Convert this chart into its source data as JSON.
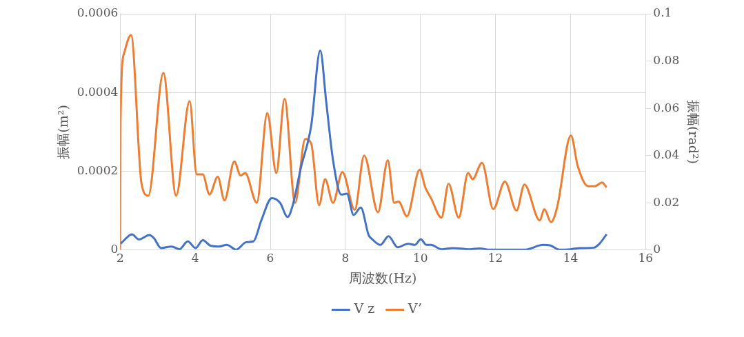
{
  "chart_data": {
    "type": "line",
    "xlabel": "周波数(Hz)",
    "ylabel": "振幅(m²)",
    "y2label": "振幅(rad²)",
    "xlim": [
      2,
      16
    ],
    "xticks": [
      2,
      4,
      6,
      8,
      10,
      12,
      14,
      16
    ],
    "ylim": [
      0,
      0.0006
    ],
    "yticks": [
      0,
      0.0002,
      0.0004,
      0.0006
    ],
    "y2lim": [
      0,
      0.1
    ],
    "y2ticks": [
      0,
      0.02,
      0.04,
      0.06,
      0.08,
      0.1
    ],
    "grid": true,
    "legend": "bottom",
    "marker": "none",
    "line_style": "solid",
    "series": [
      {
        "name": "V z",
        "color": "#4472c4",
        "x": [
          2.01,
          2.26,
          2.31,
          2.5,
          2.78,
          2.9,
          3.09,
          3.37,
          3.58,
          3.8,
          4.01,
          4.2,
          4.41,
          4.63,
          4.84,
          5.09,
          5.36,
          5.55,
          5.76,
          6.04,
          6.26,
          6.46,
          6.59,
          6.81,
          7.09,
          7.33,
          7.49,
          7.67,
          7.89,
          8.04,
          8.22,
          8.41,
          8.62,
          8.72,
          8.93,
          9.15,
          9.39,
          9.67,
          9.85,
          10.01,
          10.16,
          10.28,
          10.56,
          10.87,
          11.3,
          11.58,
          11.85,
          12.53,
          12.78,
          13.27,
          13.45,
          13.7,
          14.0,
          14.25,
          14.62,
          14.77,
          14.96
        ],
        "values": [
          1.6e-05,
          3.8e-05,
          4e-05,
          2.7e-05,
          3.8e-05,
          3e-05,
          5e-06,
          9e-06,
          2e-06,
          2.2e-05,
          5e-06,
          2.5e-05,
          1.1e-05,
          9e-06,
          1.3e-05,
          1e-06,
          2e-05,
          2.2e-05,
          7.5e-05,
          0.000132,
          0.00012,
          8.4e-05,
          0.000111,
          0.000207,
          0.000316,
          0.000507,
          0.000376,
          0.000229,
          0.000141,
          0.000143,
          8.9e-05,
          0.000108,
          3.8e-05,
          2.7e-05,
          1.3e-05,
          3.5e-05,
          7e-06,
          1.6e-05,
          1.3e-05,
          2.7e-05,
          1.3e-05,
          1.3e-05,
          2e-06,
          5e-06,
          2e-06,
          4e-06,
          1e-06,
          1e-06,
          1e-06,
          1.3e-05,
          1.2e-05,
          1e-06,
          2e-06,
          5e-06,
          6e-06,
          1.6e-05,
          4e-05
        ]
      },
      {
        "name": "V’",
        "color": "#ed7d31",
        "axis": "y2",
        "x": [
          2.0,
          2.01,
          2.1,
          2.29,
          2.57,
          2.75,
          3.15,
          3.49,
          3.85,
          4.04,
          4.2,
          4.38,
          4.6,
          4.78,
          5.04,
          5.21,
          5.33,
          5.64,
          5.92,
          6.16,
          6.38,
          6.66,
          6.93,
          7.09,
          7.3,
          7.46,
          7.67,
          7.92,
          8.25,
          8.5,
          8.87,
          9.13,
          9.3,
          9.42,
          9.64,
          9.98,
          10.13,
          10.28,
          10.56,
          10.75,
          11.02,
          11.27,
          11.39,
          11.64,
          11.94,
          12.25,
          12.56,
          12.77,
          13.18,
          13.3,
          13.48,
          13.64,
          14.01,
          14.19,
          14.47,
          14.65,
          14.84,
          14.96
        ],
        "values": [
          0.0,
          0.055,
          0.083,
          0.091,
          0.028,
          0.023,
          0.075,
          0.023,
          0.063,
          0.032,
          0.032,
          0.0235,
          0.031,
          0.021,
          0.0375,
          0.0315,
          0.0326,
          0.02,
          0.058,
          0.0326,
          0.064,
          0.02,
          0.047,
          0.045,
          0.019,
          0.03,
          0.02,
          0.033,
          0.017,
          0.04,
          0.016,
          0.038,
          0.02,
          0.0205,
          0.0143,
          0.034,
          0.0265,
          0.022,
          0.0137,
          0.028,
          0.0137,
          0.0326,
          0.03,
          0.0369,
          0.0173,
          0.029,
          0.0167,
          0.0277,
          0.0125,
          0.0173,
          0.0118,
          0.018,
          0.0485,
          0.0356,
          0.027,
          0.027,
          0.0286,
          0.0265
        ]
      }
    ]
  }
}
